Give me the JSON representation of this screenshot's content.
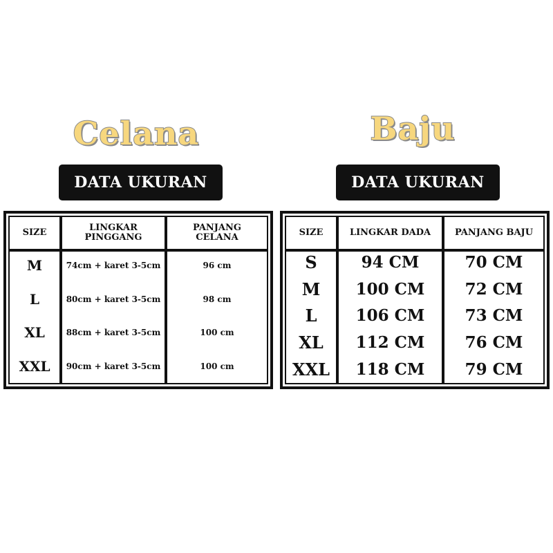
{
  "celana": {
    "title": "Celana",
    "label": "DATA UKURAN",
    "headers": [
      "SIZE",
      "LINGKAR PINGGANG",
      "PANJANG CELANA"
    ],
    "rows": [
      {
        "size": "M",
        "lingkar_pinggang": "74cm + karet 3-5cm",
        "panjang_celana": "96 cm"
      },
      {
        "size": "L",
        "lingkar_pinggang": "80cm + karet 3-5cm",
        "panjang_celana": "98 cm"
      },
      {
        "size": "XL",
        "lingkar_pinggang": "88cm + karet 3-5cm",
        "panjang_celana": "100 cm"
      },
      {
        "size": "XXL",
        "lingkar_pinggang": "90cm + karet 3-5cm",
        "panjang_celana": "100 cm"
      }
    ]
  },
  "baju": {
    "title": "Baju",
    "label": "DATA UKURAN",
    "headers": [
      "SIZE",
      "LINGKAR DADA",
      "PANJANG BAJU"
    ],
    "rows": [
      {
        "size": "S",
        "lingkar_dada": "94 CM",
        "panjang_baju": "70 CM"
      },
      {
        "size": "M",
        "lingkar_dada": "100 CM",
        "panjang_baju": "72 CM"
      },
      {
        "size": "L",
        "lingkar_dada": "106 CM",
        "panjang_baju": "73 CM"
      },
      {
        "size": "XL",
        "lingkar_dada": "112 CM",
        "panjang_baju": "76 CM"
      },
      {
        "size": "XXL",
        "lingkar_dada": "118 CM",
        "panjang_baju": "79 CM"
      }
    ]
  },
  "colors": {
    "title_fill": "#F7D77E",
    "title_outline": "#8A8A8A",
    "label_bg": "#111111"
  }
}
